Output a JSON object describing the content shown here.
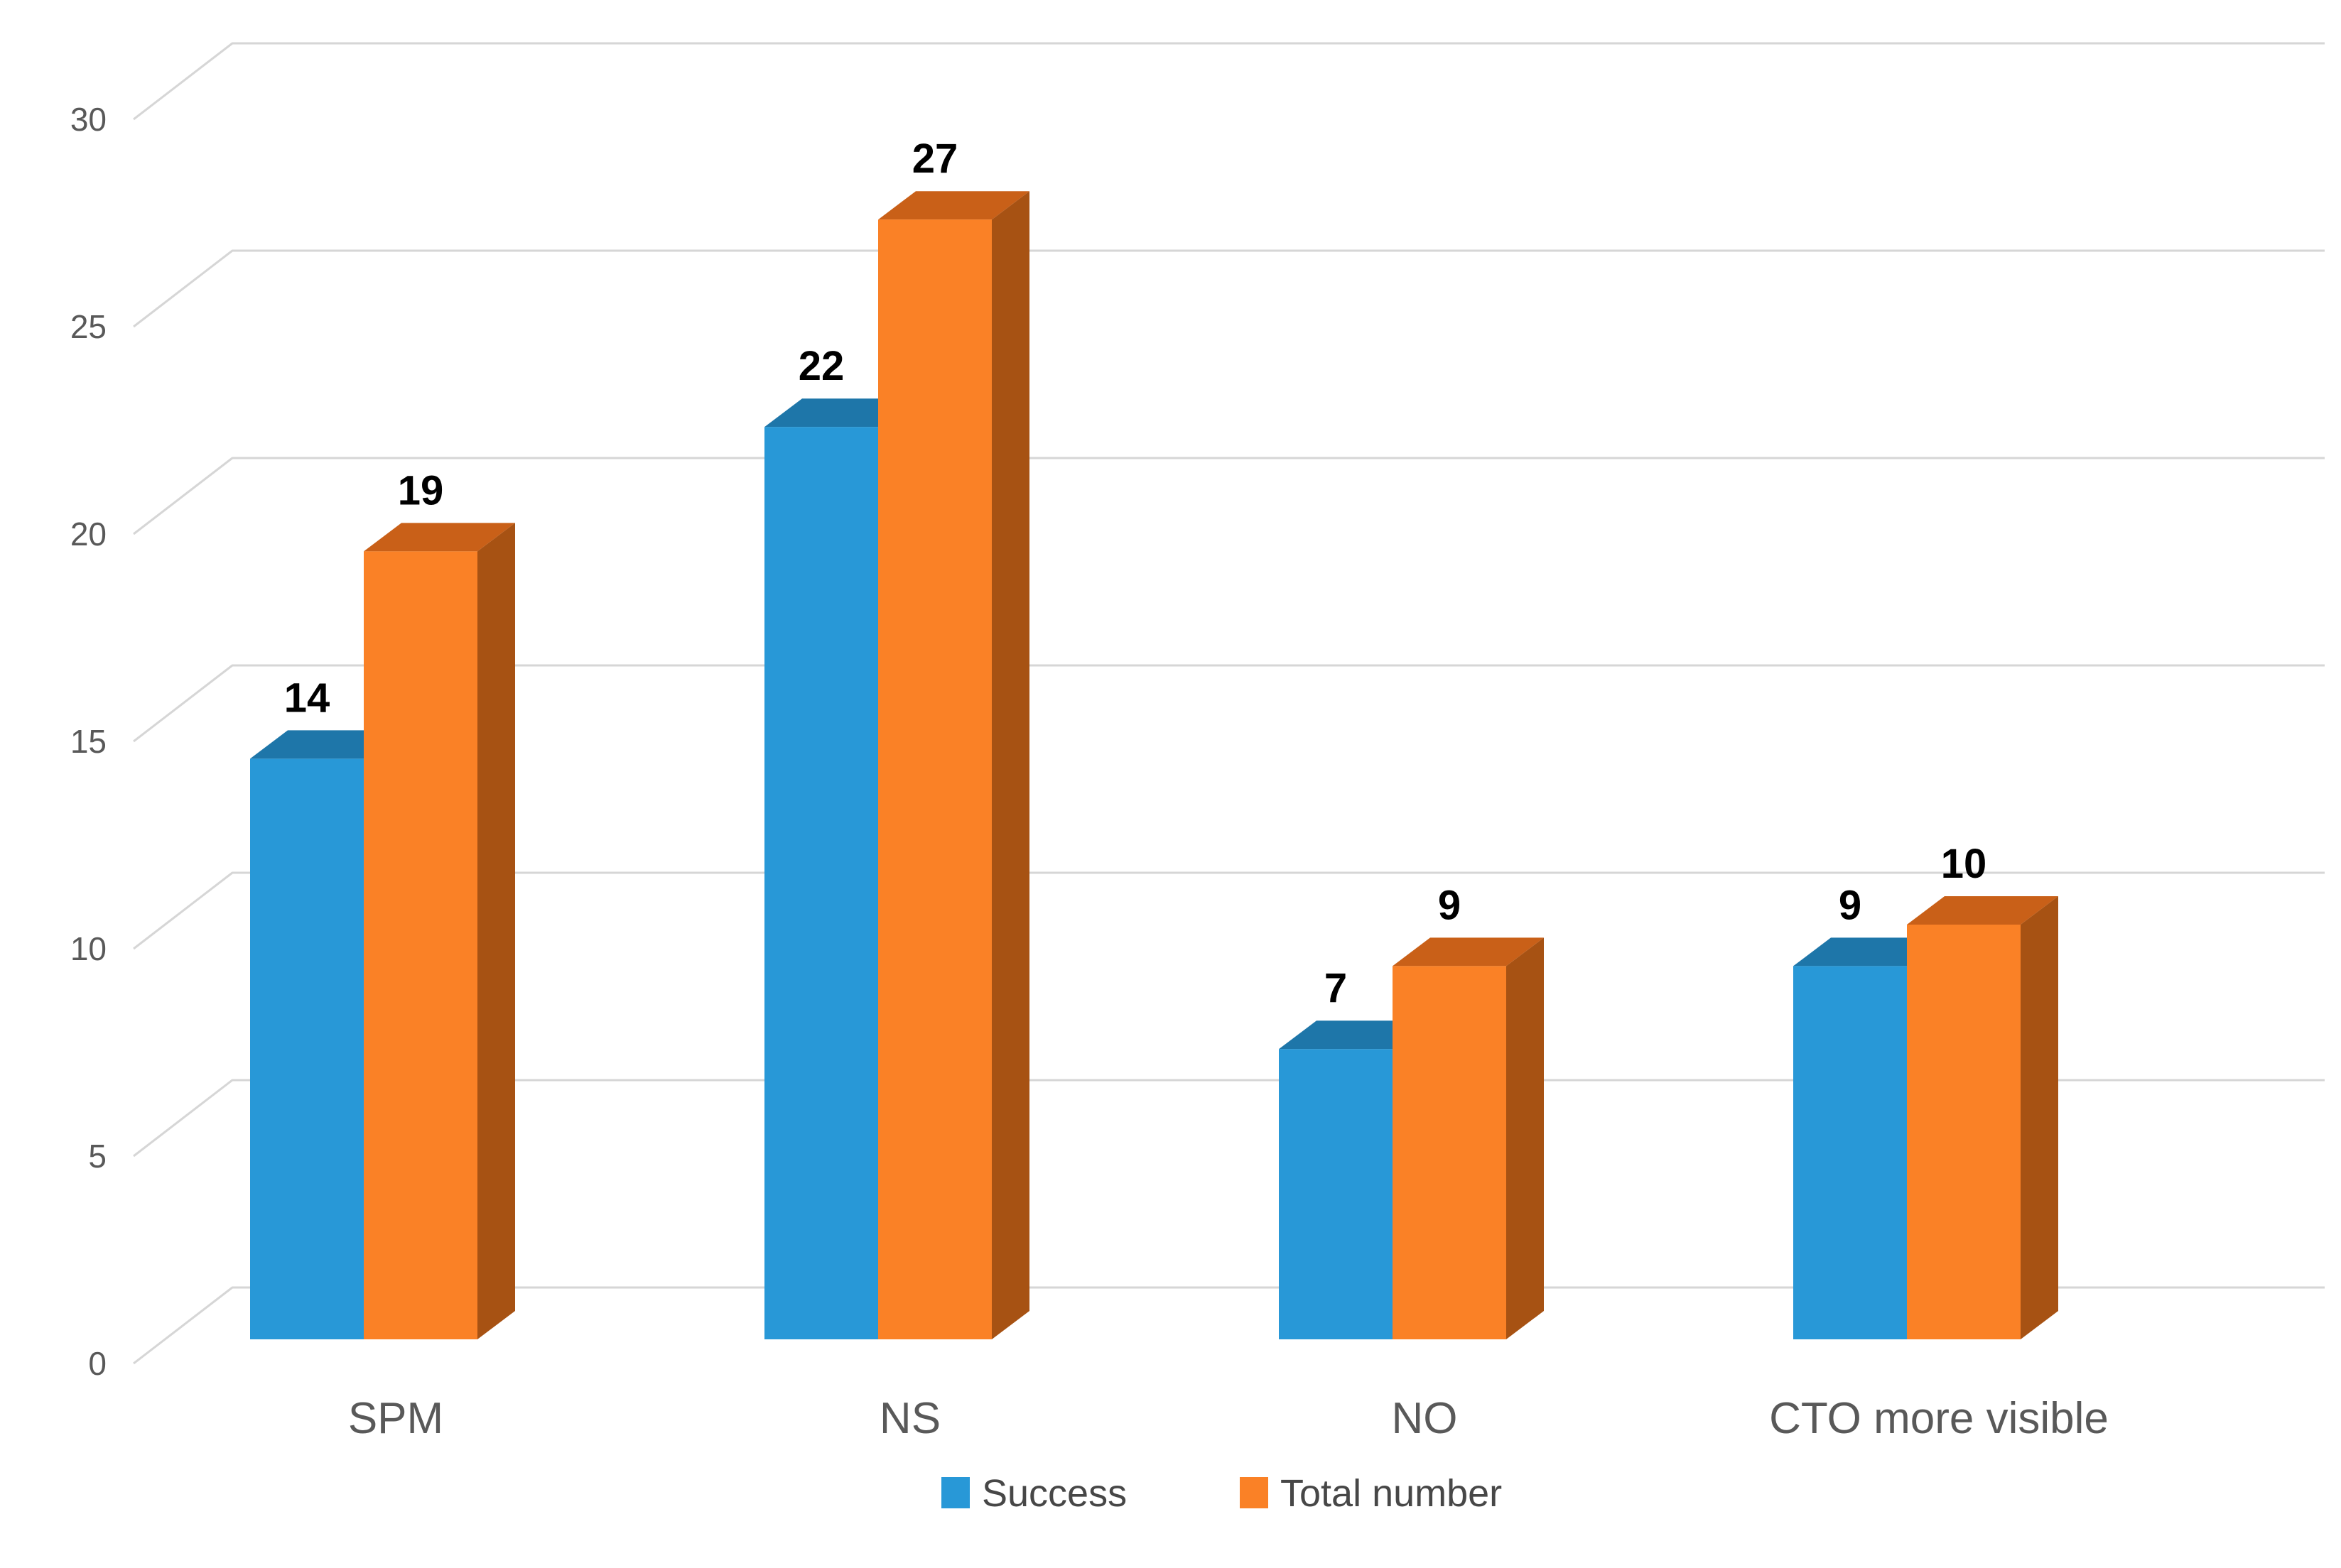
{
  "chart_data": {
    "type": "bar",
    "variant": "3d-clustered-column",
    "title": "",
    "xlabel": "",
    "ylabel": "",
    "categories": [
      "SPM",
      "NS",
      "NO",
      "CTO more visible"
    ],
    "series": [
      {
        "name": "Success",
        "values": [
          14,
          22,
          7,
          9
        ],
        "labels": [
          "14",
          "22",
          "7",
          "9"
        ],
        "color": "#2898D7",
        "color_top": "#1E76A9",
        "color_side": "#1B6C9C"
      },
      {
        "name": "Total number",
        "values": [
          19,
          27,
          9,
          10
        ],
        "labels": [
          "19",
          "27",
          "9",
          "10"
        ],
        "color": "#FA8126",
        "color_top": "#C96018",
        "color_side": "#A75213"
      }
    ],
    "ylim": [
      0,
      30
    ],
    "ytick_step": 5,
    "yticks": [
      0,
      5,
      10,
      15,
      20,
      25,
      30
    ],
    "ytick_labels": [
      "0",
      "5",
      "10",
      "15",
      "20",
      "25",
      "30"
    ],
    "grid": true,
    "legend_position": "bottom",
    "background": "#FFFFFF",
    "gridline_color": "#D6D6D6",
    "axis_text_color": "#595959",
    "legend_text_color": "#474747",
    "data_label_color": "#000000"
  }
}
